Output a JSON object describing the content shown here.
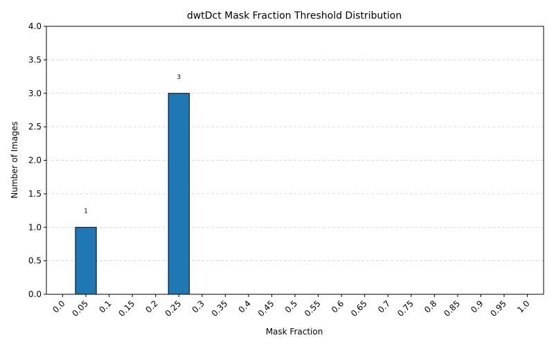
{
  "chart_data": {
    "type": "bar",
    "title": "dwtDct Mask Fraction Threshold Distribution",
    "xlabel": "Mask Fraction",
    "ylabel": "Number of Images",
    "categories": [
      "0.0",
      "0.05",
      "0.1",
      "0.15",
      "0.2",
      "0.25",
      "0.3",
      "0.35",
      "0.4",
      "0.45",
      "0.5",
      "0.55",
      "0.6",
      "0.65",
      "0.7",
      "0.75",
      "0.8",
      "0.85",
      "0.9",
      "0.95",
      "1.0"
    ],
    "values": [
      0,
      1,
      0,
      0,
      0,
      3,
      0,
      0,
      0,
      0,
      0,
      0,
      0,
      0,
      0,
      0,
      0,
      0,
      0,
      0,
      0
    ],
    "data_labels": [
      "",
      "1",
      "",
      "",
      "",
      "3",
      "",
      "",
      "",
      "",
      "",
      "",
      "",
      "",
      "",
      "",
      "",
      "",
      "",
      "",
      ""
    ],
    "ylim": [
      0,
      4
    ],
    "yticks": [
      "0.0",
      "0.5",
      "1.0",
      "1.5",
      "2.0",
      "2.5",
      "3.0",
      "3.5",
      "4.0"
    ],
    "grid": "horizontal dashed",
    "bar_color": "#1f77b4",
    "edge_color": "#000000",
    "grid_color": "#cccccc"
  }
}
